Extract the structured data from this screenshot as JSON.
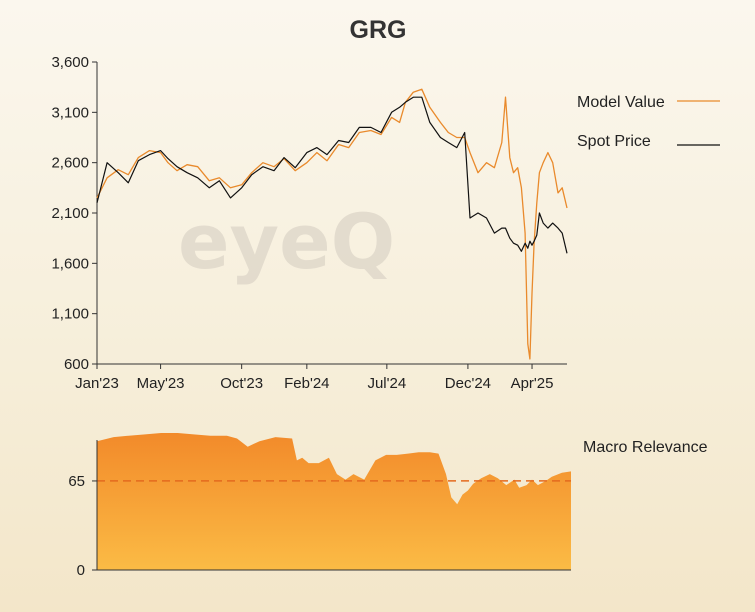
{
  "watermark": "eyeQ",
  "chart_data": [
    {
      "type": "line",
      "title": "GRG",
      "xlabel": "",
      "ylabel": "",
      "ylim": [
        600,
        3600
      ],
      "yticks": [
        "3,600",
        "3,100",
        "2,600",
        "2,100",
        "1,600",
        "1,100",
        "600"
      ],
      "ytick_values": [
        3600,
        3100,
        2600,
        2100,
        1600,
        1100,
        600
      ],
      "xlim": [
        "2023-01-01",
        "2025-06-06"
      ],
      "xticks": [
        "Jan'23",
        "May'23",
        "Oct'23",
        "Feb'24",
        "Jul'24",
        "Dec'24",
        "Apr'25"
      ],
      "xtick_dates": [
        "2023-01-01",
        "2023-05-01",
        "2023-10-01",
        "2024-02-01",
        "2024-07-01",
        "2024-12-01",
        "2025-04-01"
      ],
      "legend_position": "right",
      "colors": {
        "model": "#e98a2c",
        "spot": "#111111"
      },
      "series": [
        {
          "name": "Model Value",
          "x": [
            "2023-01-01",
            "2023-01-20",
            "2023-02-10",
            "2023-03-01",
            "2023-03-20",
            "2023-04-10",
            "2023-05-01",
            "2023-05-15",
            "2023-06-01",
            "2023-06-20",
            "2023-07-10",
            "2023-08-01",
            "2023-08-20",
            "2023-09-10",
            "2023-10-01",
            "2023-10-20",
            "2023-11-10",
            "2023-12-01",
            "2023-12-20",
            "2024-01-10",
            "2024-02-01",
            "2024-02-20",
            "2024-03-10",
            "2024-04-01",
            "2024-04-20",
            "2024-05-10",
            "2024-06-01",
            "2024-06-20",
            "2024-07-10",
            "2024-07-25",
            "2024-08-05",
            "2024-08-20",
            "2024-09-05",
            "2024-09-20",
            "2024-10-10",
            "2024-10-25",
            "2024-11-10",
            "2024-11-25",
            "2024-12-05",
            "2024-12-20",
            "2025-01-05",
            "2025-01-20",
            "2025-02-03",
            "2025-02-10",
            "2025-02-18",
            "2025-02-25",
            "2025-03-05",
            "2025-03-12",
            "2025-03-19",
            "2025-03-24",
            "2025-03-28",
            "2025-04-01",
            "2025-04-05",
            "2025-04-10",
            "2025-04-15",
            "2025-04-22",
            "2025-05-01",
            "2025-05-10",
            "2025-05-20",
            "2025-05-28",
            "2025-06-06"
          ],
          "values": [
            2250,
            2450,
            2530,
            2480,
            2650,
            2720,
            2700,
            2600,
            2520,
            2580,
            2560,
            2420,
            2450,
            2350,
            2380,
            2500,
            2600,
            2560,
            2640,
            2520,
            2600,
            2700,
            2620,
            2780,
            2750,
            2900,
            2920,
            2880,
            3050,
            3000,
            3200,
            3300,
            3330,
            3150,
            3000,
            2900,
            2850,
            2850,
            2700,
            2500,
            2600,
            2550,
            2800,
            3250,
            2650,
            2500,
            2550,
            2350,
            1900,
            800,
            650,
            1300,
            1800,
            2200,
            2500,
            2600,
            2700,
            2600,
            2300,
            2350,
            2150
          ]
        },
        {
          "name": "Spot Price",
          "x": [
            "2023-01-01",
            "2023-01-20",
            "2023-02-10",
            "2023-03-01",
            "2023-03-20",
            "2023-04-10",
            "2023-05-01",
            "2023-05-15",
            "2023-06-01",
            "2023-06-20",
            "2023-07-10",
            "2023-08-01",
            "2023-08-20",
            "2023-09-10",
            "2023-10-01",
            "2023-10-20",
            "2023-11-10",
            "2023-12-01",
            "2023-12-20",
            "2024-01-10",
            "2024-02-01",
            "2024-02-20",
            "2024-03-10",
            "2024-04-01",
            "2024-04-20",
            "2024-05-10",
            "2024-06-01",
            "2024-06-20",
            "2024-07-10",
            "2024-07-25",
            "2024-08-05",
            "2024-08-20",
            "2024-09-05",
            "2024-09-20",
            "2024-10-10",
            "2024-10-25",
            "2024-11-10",
            "2024-11-25",
            "2024-12-05",
            "2024-12-20",
            "2025-01-05",
            "2025-01-20",
            "2025-02-03",
            "2025-02-10",
            "2025-02-18",
            "2025-02-25",
            "2025-03-05",
            "2025-03-12",
            "2025-03-19",
            "2025-03-24",
            "2025-03-28",
            "2025-04-01",
            "2025-04-05",
            "2025-04-10",
            "2025-04-15",
            "2025-04-22",
            "2025-05-01",
            "2025-05-10",
            "2025-05-20",
            "2025-05-28",
            "2025-06-06"
          ],
          "values": [
            2200,
            2600,
            2500,
            2400,
            2620,
            2680,
            2720,
            2640,
            2560,
            2500,
            2450,
            2350,
            2420,
            2250,
            2350,
            2480,
            2560,
            2520,
            2650,
            2550,
            2700,
            2750,
            2680,
            2820,
            2800,
            2950,
            2950,
            2900,
            3100,
            3150,
            3200,
            3250,
            3250,
            3000,
            2850,
            2800,
            2750,
            2900,
            2050,
            2100,
            2050,
            1900,
            1950,
            1950,
            1850,
            1800,
            1780,
            1720,
            1800,
            1750,
            1820,
            1780,
            1820,
            1880,
            2100,
            2000,
            1950,
            2000,
            1950,
            1900,
            1700
          ]
        }
      ]
    },
    {
      "type": "area",
      "title": "",
      "xlabel": "",
      "ylabel": "",
      "ylim": [
        0,
        100
      ],
      "yticks": [
        "65",
        "0"
      ],
      "ytick_values": [
        65,
        0
      ],
      "reference_line": 65,
      "legend_position": "right",
      "colors": {
        "fill_top": "#f28a2a",
        "fill_bottom": "#fbbb45",
        "ref": "#e36a1e"
      },
      "series": [
        {
          "name": "Macro Relevance",
          "x": [
            "2023-01-01",
            "2023-02-01",
            "2023-03-01",
            "2023-04-01",
            "2023-05-01",
            "2023-06-01",
            "2023-07-01",
            "2023-08-01",
            "2023-09-01",
            "2023-09-20",
            "2023-10-10",
            "2023-11-01",
            "2023-12-01",
            "2024-01-01",
            "2024-01-10",
            "2024-01-20",
            "2024-02-01",
            "2024-02-20",
            "2024-03-10",
            "2024-03-25",
            "2024-04-10",
            "2024-04-25",
            "2024-05-15",
            "2024-06-05",
            "2024-06-25",
            "2024-07-15",
            "2024-08-05",
            "2024-08-25",
            "2024-09-15",
            "2024-10-01",
            "2024-10-15",
            "2024-10-25",
            "2024-11-05",
            "2024-11-15",
            "2024-11-25",
            "2024-12-05",
            "2024-12-20",
            "2025-01-05",
            "2025-01-20",
            "2025-02-05",
            "2025-02-20",
            "2025-03-01",
            "2025-03-15",
            "2025-03-25",
            "2025-04-05",
            "2025-04-20",
            "2025-05-01",
            "2025-05-20",
            "2025-06-06"
          ],
          "values": [
            94,
            97,
            98,
            99,
            100,
            100,
            99,
            98,
            98,
            96,
            90,
            94,
            97,
            96,
            80,
            82,
            78,
            78,
            82,
            70,
            66,
            70,
            66,
            80,
            84,
            84,
            85,
            86,
            86,
            85,
            70,
            53,
            48,
            55,
            58,
            63,
            67,
            70,
            67,
            62,
            66,
            60,
            62,
            66,
            62,
            65,
            68,
            71,
            72
          ]
        }
      ]
    }
  ]
}
